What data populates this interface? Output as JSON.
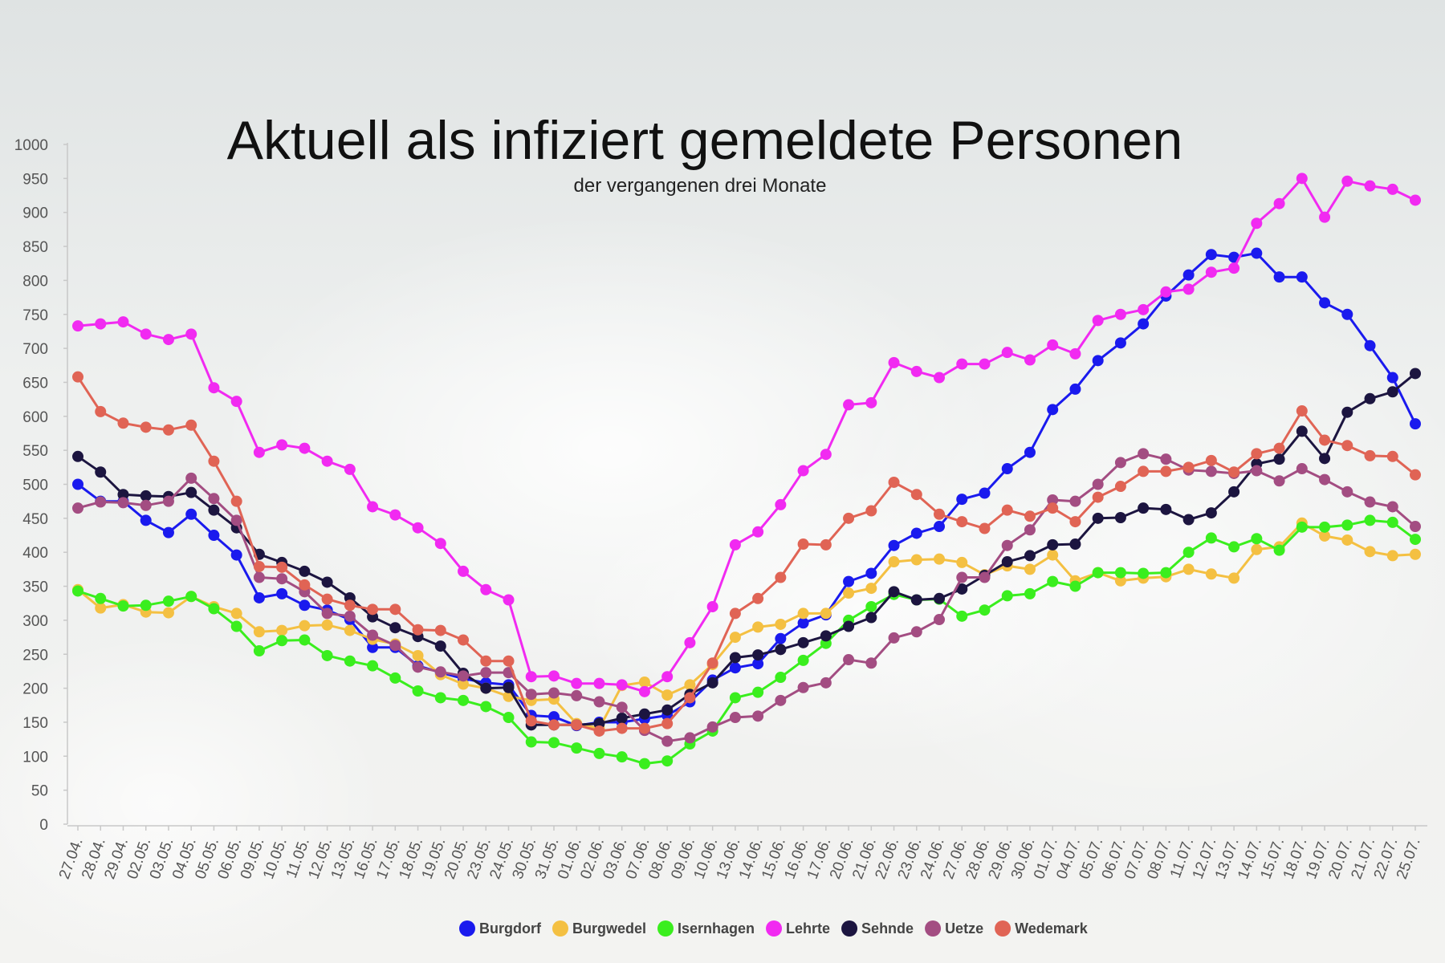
{
  "chart_data": {
    "type": "line",
    "title": "Aktuell als infiziert gemeldete Personen",
    "subtitle": "der vergangenen drei Monate",
    "ylim": [
      0,
      1000
    ],
    "yticks": [
      0,
      50,
      100,
      150,
      200,
      250,
      300,
      350,
      400,
      450,
      500,
      550,
      600,
      650,
      700,
      750,
      800,
      850,
      900,
      950,
      1000
    ],
    "legend_position": "bottom",
    "categories": [
      "27.04.",
      "28.04.",
      "29.04.",
      "02.05.",
      "03.05.",
      "04.05.",
      "05.05.",
      "06.05.",
      "09.05.",
      "10.05.",
      "11.05.",
      "12.05.",
      "13.05.",
      "16.05.",
      "17.05.",
      "18.05.",
      "19.05.",
      "20.05.",
      "23.05.",
      "24.05.",
      "30.05.",
      "31.05.",
      "01.06.",
      "02.06.",
      "03.06.",
      "07.06.",
      "08.06.",
      "09.06.",
      "10.06.",
      "13.06.",
      "14.06.",
      "15.06.",
      "16.06.",
      "17.06.",
      "20.06.",
      "21.06.",
      "22.06.",
      "23.06.",
      "24.06.",
      "27.06.",
      "28.06.",
      "29.06.",
      "30.06.",
      "01.07.",
      "04.07.",
      "05.07.",
      "06.07.",
      "07.07.",
      "08.07.",
      "11.07.",
      "12.07.",
      "13.07.",
      "14.07.",
      "15.07.",
      "18.07.",
      "19.07.",
      "20.07.",
      "21.07.",
      "22.07.",
      "25.07."
    ],
    "series": [
      {
        "name": "Burgdorf",
        "color": "#1a1aee",
        "values": [
          500,
          475,
          475,
          447,
          429,
          456,
          425,
          396,
          333,
          339,
          322,
          315,
          301,
          260,
          260,
          233,
          223,
          214,
          208,
          205,
          160,
          158,
          145,
          150,
          150,
          155,
          160,
          180,
          212,
          230,
          236,
          273,
          296,
          308,
          357,
          369,
          410,
          428,
          438,
          478,
          487,
          523,
          547,
          610,
          640,
          682,
          708,
          736,
          777,
          808,
          838,
          834,
          840,
          805,
          805,
          767,
          750,
          704,
          657,
          589
        ]
      },
      {
        "name": "Burgwedel",
        "color": "#f4c042",
        "values": [
          345,
          318,
          323,
          312,
          311,
          335,
          320,
          310,
          283,
          285,
          292,
          293,
          285,
          272,
          265,
          248,
          220,
          206,
          200,
          188,
          182,
          184,
          148,
          141,
          204,
          209,
          190,
          205,
          235,
          275,
          290,
          294,
          310,
          310,
          340,
          347,
          386,
          389,
          390,
          385,
          367,
          380,
          375,
          396,
          358,
          370,
          358,
          362,
          364,
          375,
          368,
          362,
          404,
          408,
          443,
          424,
          418,
          401,
          395,
          397
        ]
      },
      {
        "name": "Isernhagen",
        "color": "#3aee1e",
        "values": [
          343,
          332,
          321,
          322,
          328,
          335,
          317,
          291,
          255,
          270,
          271,
          248,
          240,
          233,
          215,
          196,
          186,
          182,
          173,
          157,
          121,
          120,
          112,
          104,
          99,
          89,
          93,
          118,
          137,
          186,
          194,
          216,
          241,
          266,
          300,
          320,
          338,
          330,
          331,
          306,
          315,
          336,
          339,
          357,
          350,
          370,
          370,
          369,
          370,
          400,
          421,
          408,
          420,
          403,
          437,
          437,
          440,
          447,
          444,
          419
        ]
      },
      {
        "name": "Lehrte",
        "color": "#f12af1",
        "values": [
          733,
          736,
          739,
          721,
          713,
          721,
          642,
          622,
          547,
          558,
          553,
          534,
          522,
          467,
          455,
          436,
          413,
          372,
          345,
          330,
          217,
          218,
          207,
          207,
          205,
          195,
          217,
          267,
          320,
          411,
          430,
          470,
          520,
          544,
          617,
          620,
          679,
          666,
          657,
          677,
          677,
          694,
          683,
          705,
          692,
          741,
          750,
          757,
          783,
          787,
          812,
          818,
          884,
          913,
          950,
          893,
          946,
          939,
          934,
          918
        ]
      },
      {
        "name": "Sehnde",
        "color": "#1c1540",
        "values": [
          541,
          518,
          485,
          483,
          482,
          488,
          462,
          436,
          397,
          385,
          372,
          356,
          333,
          305,
          289,
          276,
          262,
          222,
          200,
          201,
          146,
          146,
          146,
          148,
          156,
          162,
          168,
          191,
          208,
          245,
          249,
          257,
          267,
          277,
          291,
          304,
          342,
          330,
          332,
          346,
          366,
          386,
          395,
          411,
          412,
          450,
          451,
          465,
          463,
          448,
          458,
          489,
          530,
          537,
          578,
          538,
          606,
          626,
          636,
          663
        ]
      },
      {
        "name": "Uetze",
        "color": "#a34d82",
        "values": [
          465,
          474,
          473,
          469,
          475,
          509,
          479,
          447,
          363,
          361,
          342,
          310,
          306,
          278,
          263,
          231,
          224,
          218,
          223,
          223,
          191,
          193,
          189,
          180,
          172,
          138,
          122,
          127,
          143,
          157,
          159,
          182,
          201,
          208,
          242,
          237,
          274,
          283,
          301,
          363,
          363,
          410,
          433,
          477,
          475,
          500,
          532,
          545,
          537,
          521,
          519,
          516,
          520,
          505,
          523,
          507,
          489,
          474,
          467,
          438
        ]
      },
      {
        "name": "Wedemark",
        "color": "#e06455",
        "values": [
          658,
          607,
          590,
          584,
          580,
          587,
          534,
          475,
          379,
          378,
          352,
          331,
          322,
          316,
          316,
          286,
          285,
          271,
          240,
          240,
          152,
          146,
          146,
          137,
          141,
          141,
          148,
          186,
          237,
          310,
          332,
          363,
          412,
          411,
          450,
          461,
          503,
          485,
          456,
          445,
          435,
          462,
          453,
          465,
          445,
          481,
          497,
          519,
          519,
          525,
          535,
          518,
          545,
          553,
          608,
          565,
          557,
          542,
          541,
          514
        ]
      }
    ]
  }
}
